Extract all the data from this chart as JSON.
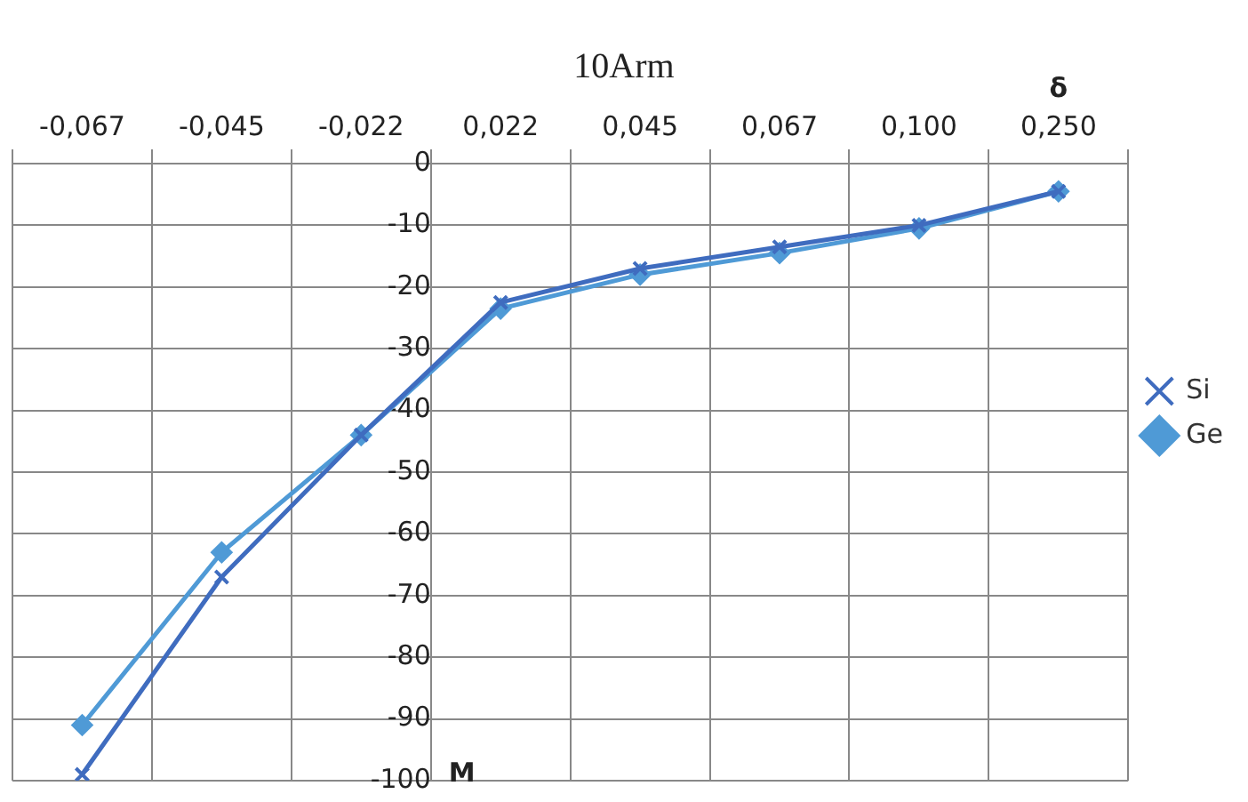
{
  "chart_data": {
    "type": "line",
    "title": "10Arm",
    "xlabel": "δ",
    "ylabel": "M",
    "categories": [
      "-0,067",
      "-0,045",
      "-0,022",
      "0,022",
      "0,045",
      "0,067",
      "0,100",
      "0,250"
    ],
    "series": [
      {
        "name": "Si",
        "color": "#3f6cbf",
        "marker": "cross",
        "values": [
          -99,
          -67,
          -44,
          -22.5,
          -17,
          -13.5,
          -10,
          -4.5
        ]
      },
      {
        "name": "Ge",
        "color": "#4f9ad6",
        "marker": "diamond",
        "values": [
          -91,
          -63,
          -44,
          -23.5,
          -18,
          -14.5,
          -10.5,
          -4.5
        ]
      }
    ],
    "ylim": [
      -100,
      0
    ],
    "yticks": [
      0,
      -10,
      -20,
      -30,
      -40,
      -50,
      -60,
      -70,
      -80,
      -90,
      -100
    ],
    "grid": true,
    "legend": "right",
    "line_style": "solid"
  }
}
